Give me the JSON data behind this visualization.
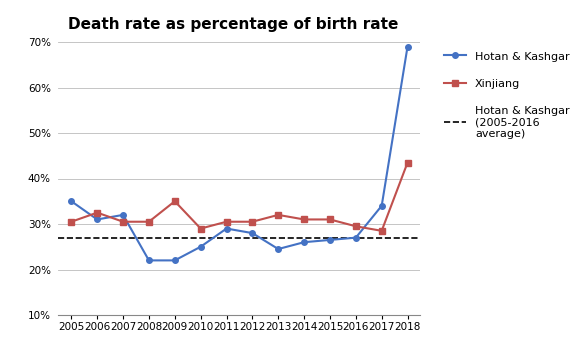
{
  "title": "Death rate as percentage of birth rate",
  "years": [
    2005,
    2006,
    2007,
    2008,
    2009,
    2010,
    2011,
    2012,
    2013,
    2014,
    2015,
    2016,
    2017,
    2018
  ],
  "hotan_kashgar": [
    0.35,
    0.31,
    0.32,
    0.22,
    0.22,
    0.25,
    0.29,
    0.28,
    0.245,
    0.26,
    0.265,
    0.27,
    0.34,
    0.69
  ],
  "xinjiang": [
    0.305,
    0.325,
    0.305,
    0.305,
    0.35,
    0.29,
    0.305,
    0.305,
    0.32,
    0.31,
    0.31,
    0.295,
    0.285,
    0.435
  ],
  "average_value": 0.27,
  "hotan_color": "#4472C4",
  "xinjiang_color": "#C0504D",
  "average_color": "#000000",
  "ylim_min": 0.1,
  "ylim_max": 0.7,
  "yticks": [
    0.1,
    0.2,
    0.3,
    0.4,
    0.5,
    0.6,
    0.7
  ],
  "legend_hotan": "Hotan & Kashgar",
  "legend_xinjiang": "Xinjiang",
  "legend_average": "Hotan & Kashgar\n(2005-2016\naverage)",
  "background_color": "#FFFFFF",
  "title_fontsize": 11,
  "tick_fontsize": 7.5
}
